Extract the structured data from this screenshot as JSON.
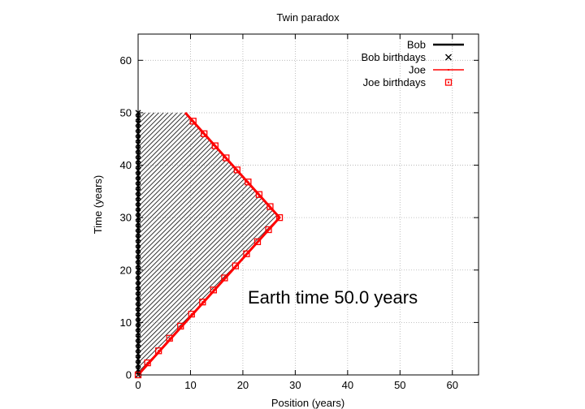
{
  "chart_data": {
    "type": "line",
    "title": "Twin paradox",
    "xlabel": "Position (years)",
    "ylabel": "Time (years)",
    "xlim": [
      0,
      65
    ],
    "ylim": [
      0,
      65
    ],
    "xticks": [
      0,
      10,
      20,
      30,
      40,
      50,
      60
    ],
    "yticks": [
      0,
      10,
      20,
      30,
      40,
      50,
      60
    ],
    "grid": true,
    "legend_position": "top-right",
    "annotation": "Earth time 50.0 years",
    "colors": {
      "bob": "#000000",
      "joe": "#ff0000",
      "grid": "#b0b0b0"
    },
    "series": [
      {
        "name": "Bob",
        "style": "line",
        "x": [
          0,
          0
        ],
        "y": [
          0,
          50
        ]
      },
      {
        "name": "Bob birthdays",
        "style": "points-x",
        "x": [
          0,
          0,
          0,
          0,
          0,
          0,
          0,
          0,
          0,
          0,
          0,
          0,
          0,
          0,
          0,
          0,
          0,
          0,
          0,
          0,
          0,
          0,
          0,
          0,
          0,
          0,
          0,
          0,
          0,
          0,
          0,
          0,
          0,
          0,
          0,
          0,
          0,
          0,
          0,
          0,
          0,
          0,
          0,
          0,
          0,
          0,
          0,
          0,
          0,
          0,
          0
        ],
        "y": [
          0,
          1,
          2,
          3,
          4,
          5,
          6,
          7,
          8,
          9,
          10,
          11,
          12,
          13,
          14,
          15,
          16,
          17,
          18,
          19,
          20,
          21,
          22,
          23,
          24,
          25,
          26,
          27,
          28,
          29,
          30,
          31,
          32,
          33,
          34,
          35,
          36,
          37,
          38,
          39,
          40,
          41,
          42,
          43,
          44,
          45,
          46,
          47,
          48,
          49,
          50
        ]
      },
      {
        "name": "Joe",
        "style": "line",
        "x": [
          0,
          27,
          9
        ],
        "y": [
          0,
          30,
          50
        ]
      },
      {
        "name": "Joe birthdays",
        "style": "points-square",
        "x": [
          0,
          1.8,
          3.9,
          6.0,
          8.1,
          10.2,
          12.3,
          14.4,
          16.5,
          18.6,
          20.7,
          22.8,
          24.9,
          27.0,
          25.2,
          23.1,
          21.0,
          18.9,
          16.8,
          14.7,
          12.6,
          10.5
        ],
        "y": [
          0,
          2.3,
          4.6,
          7.0,
          9.3,
          11.6,
          13.9,
          16.2,
          18.5,
          20.8,
          23.1,
          25.4,
          27.7,
          30.0,
          32.1,
          34.4,
          36.8,
          39.1,
          41.4,
          43.7,
          46.0,
          48.4
        ]
      }
    ]
  }
}
